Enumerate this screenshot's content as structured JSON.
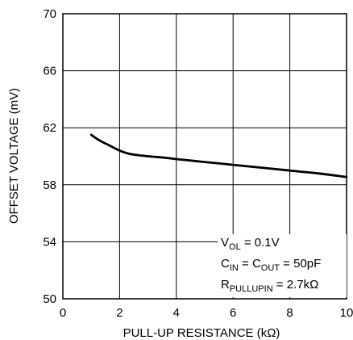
{
  "chart_data": {
    "type": "line",
    "xlabel": "PULL-UP RESISTANCE (kΩ)",
    "ylabel": "OFFSET VOLTAGE (mV)",
    "xlim": [
      0,
      10
    ],
    "ylim": [
      50,
      70
    ],
    "x_ticks": [
      "0",
      "2",
      "4",
      "6",
      "8",
      "10"
    ],
    "y_ticks": [
      "50",
      "54",
      "58",
      "62",
      "66",
      "70"
    ],
    "grid": true,
    "series": [
      {
        "x": [
          1.0,
          1.3,
          1.6,
          2.0,
          2.4,
          3.0,
          3.6,
          4.0,
          5.0,
          6.0,
          7.0,
          8.0,
          9.0,
          10.0
        ],
        "y": [
          61.5,
          61.1,
          60.8,
          60.4,
          60.15,
          60.0,
          59.9,
          59.8,
          59.6,
          59.4,
          59.2,
          59.0,
          58.8,
          58.55
        ],
        "color": "#000000"
      }
    ],
    "annotations": {
      "vol": {
        "main": "V",
        "sub": "OL",
        "rest": " = 0.1V"
      },
      "cap": {
        "c1": "C",
        "sub1": "IN",
        "mid": " = C",
        "sub2": "OUT",
        "rest": " = 50pF"
      },
      "res": {
        "main": "R",
        "sub": "PULLUPIN",
        "rest": " = 2.7kΩ"
      }
    }
  }
}
